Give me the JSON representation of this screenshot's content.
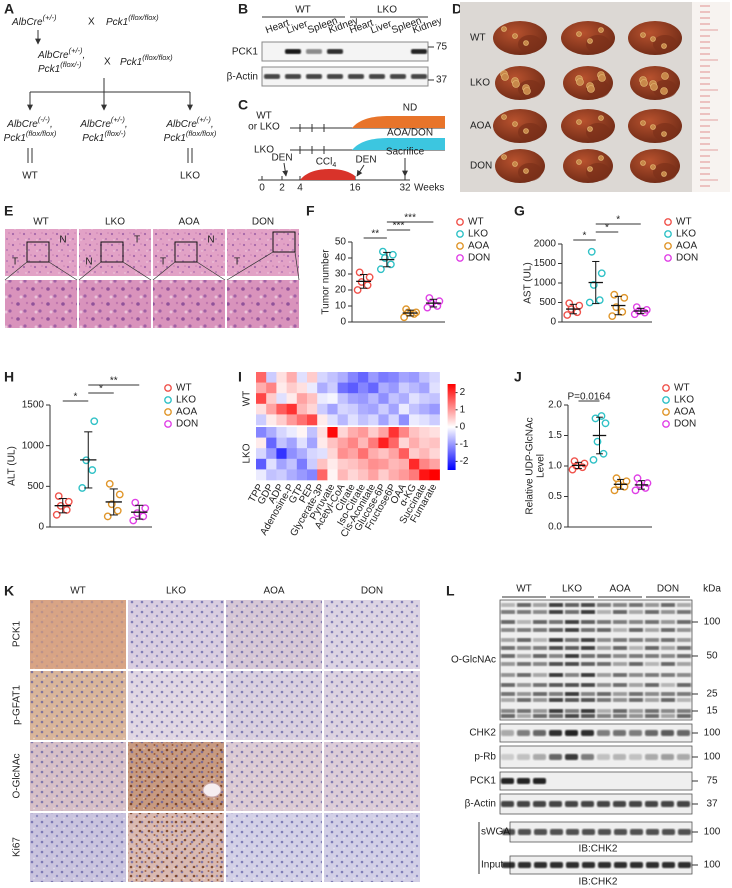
{
  "panel_a": {
    "label": "A",
    "parent1": [
      {
        "t": "AlbCre"
      },
      {
        "sup": "(+/-)"
      }
    ],
    "cross1": "X",
    "parent2": [
      {
        "t": "Pck1"
      },
      {
        "sup": "(flox/flox)"
      }
    ],
    "f1_line1": [
      {
        "t": "AlbCre"
      },
      {
        "sup": "(+/-)"
      },
      {
        "t": ","
      }
    ],
    "f1_line2": [
      {
        "t": "Pck1"
      },
      {
        "sup": "(flox/-)"
      }
    ],
    "cross2": "X",
    "parent3": [
      {
        "t": "Pck1"
      },
      {
        "sup": "(flox/flox)"
      }
    ],
    "offspring": [
      {
        "line1": [
          {
            "t": "AlbCre"
          },
          {
            "sup": "(-/-)"
          },
          {
            "t": ","
          }
        ],
        "line2": [
          {
            "t": "Pck1"
          },
          {
            "sup": "(flox/flox)"
          }
        ]
      },
      {
        "line1": [
          {
            "t": "AlbCre"
          },
          {
            "sup": "(+/-)"
          },
          {
            "t": ","
          }
        ],
        "line2": [
          {
            "t": "Pck1"
          },
          {
            "sup": "(flox/-)"
          }
        ]
      },
      {
        "line1": [
          {
            "t": "AlbCre"
          },
          {
            "sup": "(+/-)"
          },
          {
            "t": ","
          }
        ],
        "line2": [
          {
            "t": "Pck1"
          },
          {
            "sup": "(flox/flox)"
          }
        ]
      }
    ],
    "outcomes": [
      "WT",
      "LKO"
    ]
  },
  "panel_b": {
    "label": "B",
    "groups": [
      "WT",
      "LKO"
    ],
    "lanes": [
      "Heart",
      "Liver",
      "Spleen",
      "Kidney",
      "Heart",
      "Liver",
      "Spleen",
      "Kidney"
    ],
    "rows": [
      "PCK1",
      "β-Actin"
    ],
    "markers": [
      "75",
      "37"
    ]
  },
  "panel_c": {
    "label": "C",
    "row1": [
      "WT",
      "or LKO"
    ],
    "row2": "LKO",
    "diet1": "ND",
    "diet2": "AOA/DON",
    "den1": "DEN",
    "ccl4": {
      "t": "CCl",
      "sub": "4"
    },
    "den2": "DEN",
    "sacrifice": "Sacrifice",
    "weeks": [
      "0",
      "2",
      "4",
      "16",
      "32"
    ],
    "unit": "Weeks"
  },
  "panel_d": {
    "label": "D",
    "rows": [
      "WT",
      "LKO",
      "AOA",
      "DON"
    ]
  },
  "panel_e": {
    "label": "E",
    "columns": [
      "WT",
      "LKO",
      "AOA",
      "DON"
    ],
    "regions": [
      [
        "T",
        "N"
      ],
      [
        "N",
        "T"
      ],
      [
        "T",
        "N"
      ],
      [
        "T"
      ]
    ]
  },
  "panel_k": {
    "label": "K",
    "columns": [
      "WT",
      "LKO",
      "AOA",
      "DON"
    ],
    "rows": [
      "PCK1",
      "p-GFAT1",
      "O-GlcNAc",
      "Ki67"
    ]
  },
  "panel_l": {
    "label": "L",
    "groups": [
      "WT",
      "LKO",
      "AOA",
      "DON"
    ],
    "unit": "kDa",
    "rows": [
      {
        "name": "O-GlcNAc",
        "markers": [
          "100",
          "50",
          "25",
          "15"
        ]
      },
      {
        "name": "CHK2",
        "markers": [
          "100"
        ]
      },
      {
        "name": "p-Rb",
        "markers": [
          "100"
        ]
      },
      {
        "name": "PCK1",
        "markers": [
          "75"
        ]
      },
      {
        "name": "β-Actin",
        "markers": [
          "37"
        ]
      },
      {
        "name": "sWGA",
        "markers": [
          "100"
        ]
      },
      {
        "name": "Input",
        "markers": [
          "100"
        ]
      }
    ],
    "blots": [
      "IB:CHK2",
      "IB:CHK2"
    ]
  },
  "chart_data": [
    {
      "panel": "F",
      "type": "dotplot",
      "ylabel": "Tumor number",
      "ylim": [
        0,
        50
      ],
      "yticks": [
        0,
        10,
        20,
        30,
        40,
        50
      ],
      "legend": "right",
      "series": [
        {
          "name": "WT",
          "color": "#f0524b",
          "values": [
            20,
            23,
            25,
            28,
            31
          ],
          "mean": 25.4,
          "sd": 4.3
        },
        {
          "name": "LKO",
          "color": "#2fc1c6",
          "values": [
            33,
            36,
            40,
            42,
            44
          ],
          "mean": 39,
          "sd": 4.5
        },
        {
          "name": "AOA",
          "color": "#e0962a",
          "values": [
            3,
            5,
            6,
            6,
            8
          ],
          "mean": 5.6,
          "sd": 1.8
        },
        {
          "name": "DON",
          "color": "#e040e6",
          "values": [
            9,
            10,
            12,
            13,
            15
          ],
          "mean": 11.8,
          "sd": 2.4
        }
      ],
      "annotations": [
        {
          "text": "**",
          "groups": [
            "WT",
            "LKO"
          ]
        },
        {
          "text": "***",
          "groups": [
            "LKO",
            "AOA"
          ]
        },
        {
          "text": "***",
          "groups": [
            "LKO",
            "DON"
          ]
        }
      ]
    },
    {
      "panel": "G",
      "type": "dotplot",
      "ylabel": "AST (UL)",
      "ylim": [
        0,
        2000
      ],
      "yticks": [
        0,
        500,
        1000,
        1500,
        2000
      ],
      "legend": "right",
      "series": [
        {
          "name": "WT",
          "color": "#f0524b",
          "values": [
            180,
            250,
            330,
            420,
            480
          ],
          "mean": 332,
          "sd": 121
        },
        {
          "name": "LKO",
          "color": "#2fc1c6",
          "values": [
            500,
            560,
            950,
            1250,
            1800
          ],
          "mean": 1012,
          "sd": 540
        },
        {
          "name": "AOA",
          "color": "#e0962a",
          "values": [
            150,
            260,
            380,
            620,
            700
          ],
          "mean": 422,
          "sd": 236
        },
        {
          "name": "DON",
          "color": "#e040e6",
          "values": [
            200,
            240,
            280,
            310,
            380
          ],
          "mean": 282,
          "sd": 68
        }
      ],
      "annotations": [
        {
          "text": "*",
          "groups": [
            "WT",
            "LKO"
          ]
        },
        {
          "text": "*",
          "groups": [
            "LKO",
            "AOA"
          ]
        },
        {
          "text": "*",
          "groups": [
            "LKO",
            "DON"
          ]
        }
      ]
    },
    {
      "panel": "H",
      "type": "dotplot",
      "ylabel": "ALT (UL)",
      "ylim": [
        0,
        1500
      ],
      "yticks": [
        0,
        500,
        1000,
        1500
      ],
      "legend": "right",
      "series": [
        {
          "name": "WT",
          "color": "#f0524b",
          "values": [
            150,
            210,
            260,
            310,
            380
          ],
          "mean": 262,
          "sd": 88
        },
        {
          "name": "LKO",
          "color": "#2fc1c6",
          "values": [
            480,
            700,
            820,
            1300
          ],
          "mean": 825,
          "sd": 345
        },
        {
          "name": "AOA",
          "color": "#e0962a",
          "values": [
            130,
            200,
            280,
            400,
            530
          ],
          "mean": 308,
          "sd": 160
        },
        {
          "name": "DON",
          "color": "#e040e6",
          "values": [
            80,
            130,
            170,
            230,
            300
          ],
          "mean": 182,
          "sd": 85
        }
      ],
      "annotations": [
        {
          "text": "*",
          "groups": [
            "WT",
            "LKO"
          ]
        },
        {
          "text": "*",
          "groups": [
            "LKO",
            "AOA"
          ]
        },
        {
          "text": "**",
          "groups": [
            "LKO",
            "DON"
          ]
        }
      ]
    },
    {
      "panel": "I",
      "type": "heatmap",
      "columns": [
        "TPP",
        "GDP",
        "ADP",
        "Adenosine-P",
        "GTP",
        "PEP",
        "Glycerate-3P",
        "Pyruvate",
        "Acetyl-CoA",
        "Citrate",
        "Iso-Citrate",
        "Cis-Aconitate",
        "Glucose-6P",
        "Fructose6P",
        "OAA",
        "α-KG",
        "Succinate",
        "Fumarate"
      ],
      "clim": [
        -2.5,
        2.5
      ],
      "cticks": [
        2,
        1,
        0,
        -1,
        -2
      ],
      "colors": [
        "#0000ff",
        "#ffffff",
        "#ff0000"
      ],
      "row_groups": [
        {
          "name": "WT",
          "matrix": [
            [
              1.5,
              -0.5,
              0.3,
              0.8,
              -0.3,
              0.5,
              -0.4,
              -0.6,
              -0.8,
              -1.2,
              -1.5,
              -1.0,
              -1.3,
              -1.2,
              -0.9,
              -1.0,
              -0.6,
              -0.4
            ],
            [
              0.8,
              1.2,
              0.2,
              0.5,
              0.3,
              -0.2,
              -0.8,
              -0.5,
              -1.4,
              -1.6,
              -1.2,
              -1.5,
              -0.8,
              -1.0,
              -0.5,
              -0.7,
              -0.9,
              -0.3
            ],
            [
              1.8,
              0.5,
              -0.3,
              0.2,
              0.9,
              0.6,
              -0.2,
              -0.1,
              -0.6,
              -0.9,
              -1.0,
              -0.7,
              -1.1,
              -0.6,
              -0.8,
              -0.3,
              -0.5,
              -0.6
            ],
            [
              0.3,
              0.9,
              1.6,
              2.0,
              0.7,
              0.4,
              -0.5,
              -0.9,
              -0.4,
              -0.5,
              -0.8,
              -0.9,
              -0.5,
              -0.9,
              -0.2,
              -0.6,
              -0.8,
              -1.0
            ],
            [
              -0.5,
              0.2,
              0.5,
              1.0,
              1.4,
              1.8,
              0.2,
              -0.3,
              -0.7,
              -0.3,
              -0.6,
              -0.4,
              -0.9,
              -0.4,
              -1.1,
              -0.2,
              -0.3,
              -0.5
            ]
          ]
        },
        {
          "name": "LKO",
          "matrix": [
            [
              -1.2,
              -0.8,
              -0.4,
              -0.2,
              0.1,
              -0.6,
              0.3,
              2.4,
              0.4,
              0.8,
              1.0,
              0.5,
              0.9,
              2.0,
              1.2,
              0.6,
              0.4,
              0.3
            ],
            [
              0.2,
              -1.5,
              -0.6,
              -0.9,
              -0.3,
              -0.9,
              0.2,
              0.6,
              0.9,
              1.2,
              0.7,
              1.3,
              2.2,
              1.5,
              0.4,
              0.8,
              0.5,
              0.6
            ],
            [
              -0.4,
              -1.0,
              -2.0,
              -1.1,
              -0.8,
              -0.4,
              -0.3,
              0.4,
              1.1,
              0.9,
              1.4,
              0.8,
              0.6,
              0.9,
              1.6,
              0.5,
              0.7,
              0.4
            ],
            [
              -1.6,
              -0.3,
              -0.9,
              -0.6,
              -1.3,
              -0.5,
              0.6,
              0.2,
              0.5,
              0.6,
              0.8,
              1.1,
              1.0,
              0.7,
              0.8,
              2.1,
              1.2,
              0.9
            ],
            [
              -0.2,
              -0.6,
              -0.5,
              -0.8,
              -1.0,
              -1.2,
              1.5,
              0.1,
              0.7,
              0.4,
              0.6,
              0.9,
              0.5,
              0.8,
              1.0,
              1.3,
              2.3,
              2.5
            ]
          ]
        }
      ]
    },
    {
      "panel": "J",
      "type": "dotplot",
      "ylabel": [
        "Relative UDP-GlcNAc",
        "Level"
      ],
      "ylim": [
        0,
        2
      ],
      "yticks": [
        {
          "value": 0,
          "label": "0.0"
        },
        0.5,
        {
          "value": 1,
          "label": "1.0"
        },
        1.5,
        {
          "value": 2,
          "label": "2.0"
        }
      ],
      "legend": "right",
      "series": [
        {
          "name": "WT",
          "color": "#f0524b",
          "values": [
            0.94,
            0.98,
            1.0,
            1.04,
            1.08
          ],
          "mean": 1.01,
          "sd": 0.05
        },
        {
          "name": "LKO",
          "color": "#2fc1c6",
          "values": [
            1.1,
            1.2,
            1.4,
            1.7,
            1.78,
            1.82
          ],
          "mean": 1.5,
          "sd": 0.3
        },
        {
          "name": "AOA",
          "color": "#e0962a",
          "values": [
            0.6,
            0.66,
            0.7,
            0.75,
            0.8
          ],
          "mean": 0.7,
          "sd": 0.08
        },
        {
          "name": "DON",
          "color": "#e040e6",
          "values": [
            0.6,
            0.64,
            0.7,
            0.72,
            0.8
          ],
          "mean": 0.69,
          "sd": 0.07
        }
      ],
      "annotations": [
        {
          "text": "P=0.0164",
          "groups": [
            "WT",
            "LKO"
          ]
        }
      ]
    }
  ]
}
